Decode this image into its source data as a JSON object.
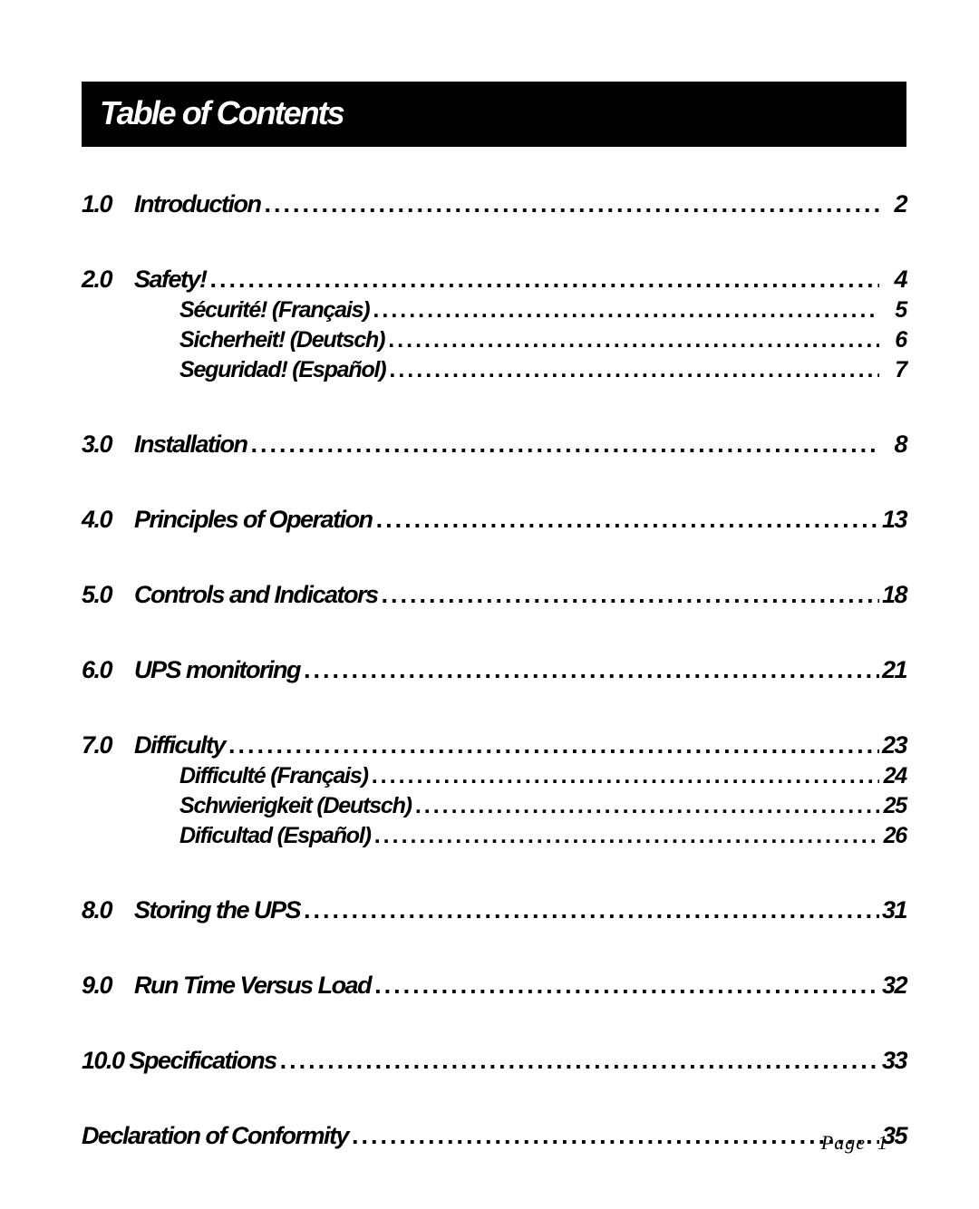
{
  "title": "Table of Contents",
  "entries": [
    {
      "num": "1.0",
      "label": "Introduction",
      "page": "2",
      "sub": []
    },
    {
      "num": "2.0",
      "label": "Safety!",
      "page": "4",
      "sub": [
        {
          "label": "Sécurité! (Français)",
          "page": "5"
        },
        {
          "label": "Sicherheit! (Deutsch)",
          "page": "6"
        },
        {
          "label": "Seguridad! (Español)",
          "page": "7"
        }
      ]
    },
    {
      "num": "3.0",
      "label": "Installation",
      "page": "8",
      "sub": []
    },
    {
      "num": "4.0",
      "label": "Principles of Operation",
      "page": "13",
      "sub": []
    },
    {
      "num": "5.0",
      "label": "Controls and Indicators",
      "page": "18",
      "sub": []
    },
    {
      "num": "6.0",
      "label": "UPS monitoring",
      "page": "21",
      "sub": []
    },
    {
      "num": "7.0",
      "label": "Difficulty",
      "page": "23",
      "sub": [
        {
          "label": "Difficulté (Français)",
          "page": "24"
        },
        {
          "label": "Schwierigkeit (Deutsch)",
          "page": "25"
        },
        {
          "label": "Dificultad (Español)",
          "page": "26"
        }
      ]
    },
    {
      "num": "8.0",
      "label": "Storing the UPS",
      "page": "31",
      "sub": []
    },
    {
      "num": "9.0",
      "label": "Run Time Versus Load",
      "page": "32",
      "sub": []
    },
    {
      "num": "10.0",
      "label": "Specifications",
      "page": "33",
      "sub": [],
      "no_num_col": true
    },
    {
      "num": "",
      "label": "Declaration of Conformity",
      "page": "35",
      "sub": [],
      "no_num_col": true
    }
  ],
  "footer_label": "Page",
  "footer_num": "1",
  "leader": "....................................................................................................................................................................",
  "colors": {
    "bg": "#ffffff",
    "text": "#000000",
    "titlebar_bg": "#000000",
    "titlebar_fg": "#ffffff"
  }
}
